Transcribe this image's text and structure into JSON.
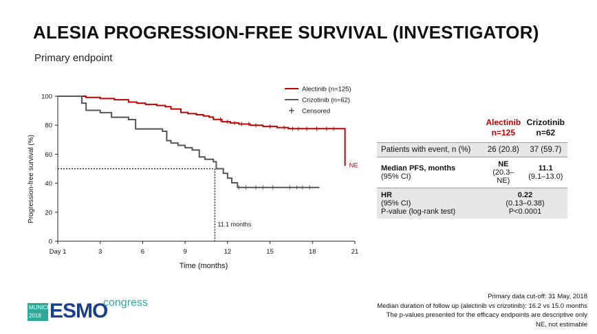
{
  "header": {
    "title": "ALESIA PROGRESSION-FREE SURVIVAL (INVESTIGATOR)",
    "subtitle": "Primary endpoint"
  },
  "chart_data": {
    "type": "line",
    "xlabel": "Time (months)",
    "ylabel": "Progression-free survival (%)",
    "xlim": [
      0,
      21
    ],
    "ylim": [
      0,
      100
    ],
    "x_ticks": [
      0,
      3,
      6,
      9,
      12,
      15,
      18,
      21
    ],
    "x_tick_labels": [
      "Day 1",
      "3",
      "6",
      "9",
      "12",
      "15",
      "18",
      "21"
    ],
    "y_ticks": [
      0,
      20,
      40,
      60,
      80,
      100
    ],
    "y_tick_labels": [
      "0",
      "20",
      "40",
      "60",
      "80",
      "100"
    ],
    "legend_position": "top-right",
    "series": [
      {
        "name": "Alectinib (n=125)",
        "color": "#c00000",
        "steps": [
          [
            0,
            100
          ],
          [
            1.5,
            100
          ],
          [
            2.0,
            99.2
          ],
          [
            3.0,
            98.4
          ],
          [
            4.0,
            97.6
          ],
          [
            5.0,
            96.0
          ],
          [
            5.6,
            95.2
          ],
          [
            6.2,
            94.4
          ],
          [
            7.0,
            93.6
          ],
          [
            7.6,
            92.8
          ],
          [
            8.0,
            91.2
          ],
          [
            8.7,
            88.8
          ],
          [
            9.2,
            88.0
          ],
          [
            9.8,
            87.2
          ],
          [
            10.3,
            86.4
          ],
          [
            10.7,
            85.6
          ],
          [
            11.0,
            84.0
          ],
          [
            11.6,
            82.4
          ],
          [
            12.2,
            81.6
          ],
          [
            12.8,
            80.8
          ],
          [
            13.6,
            80.0
          ],
          [
            14.5,
            79.2
          ],
          [
            15.5,
            78.4
          ],
          [
            16.3,
            77.6
          ],
          [
            19.6,
            77.6
          ],
          [
            20.3,
            77.6
          ],
          [
            20.3,
            52.0
          ]
        ],
        "censored_x": [
          11.5,
          12.0,
          12.5,
          13.0,
          13.5,
          14.0,
          15.0,
          16.0,
          16.6,
          17.0,
          17.6,
          18.3,
          19.0,
          19.5
        ],
        "end_label": "NE"
      },
      {
        "name": "Crizotinib (n=62)",
        "color": "#555555",
        "steps": [
          [
            0,
            100
          ],
          [
            1.7,
            100
          ],
          [
            1.7,
            95.2
          ],
          [
            2.0,
            90.3
          ],
          [
            3.0,
            88.7
          ],
          [
            3.8,
            85.5
          ],
          [
            5.0,
            83.9
          ],
          [
            5.5,
            77.4
          ],
          [
            7.4,
            75.8
          ],
          [
            7.7,
            69.4
          ],
          [
            8.0,
            67.7
          ],
          [
            8.5,
            66.1
          ],
          [
            9.0,
            64.5
          ],
          [
            9.5,
            62.9
          ],
          [
            10.0,
            58.1
          ],
          [
            10.4,
            56.5
          ],
          [
            11.0,
            54.8
          ],
          [
            11.2,
            50.0
          ],
          [
            11.7,
            46.8
          ],
          [
            12.0,
            43.5
          ],
          [
            12.3,
            40.3
          ],
          [
            12.7,
            37.1
          ],
          [
            18.5,
            37.1
          ]
        ],
        "censored_x": [
          12.8,
          13.3,
          14.0,
          14.5,
          15.2,
          16.4,
          16.9,
          17.3,
          17.8
        ]
      }
    ],
    "median_line": {
      "x": 11.1,
      "y": 50,
      "label": "11.1 months"
    },
    "censored_legend": "Censored"
  },
  "table": {
    "columns": [
      "Alectinib\nn=125",
      "Crizotinib\nn=62"
    ],
    "rows": [
      {
        "label": "Patients with event, n (%)",
        "values": [
          "26 (20.8)",
          "37 (59.7)"
        ]
      },
      {
        "label": "Median PFS, months",
        "sublabel": "(95% CI)",
        "values": [
          "NE",
          "11.1"
        ],
        "subvalues": [
          "(20.3–NE)",
          "(9.1–13.0)"
        ]
      },
      {
        "label": "HR",
        "sublabel": "(95% CI)",
        "sublabel2": "P-value (log-rank test)",
        "value": "0.22",
        "subvalue": "(0.13–0.38)",
        "subvalue2": "P<0.0001"
      }
    ]
  },
  "footnotes": [
    "Primary data cut-off: 31 May, 2018",
    "Median duration of follow up (alectinib vs crizotinib): 16.2 vs 15.0 months",
    "The p-values presented for the efficacy endpoints are descriptive only",
    "NE, not estimable"
  ],
  "logo": {
    "city": "MUNICH",
    "year": "2018",
    "brand": "ESMO",
    "word": "congress"
  }
}
